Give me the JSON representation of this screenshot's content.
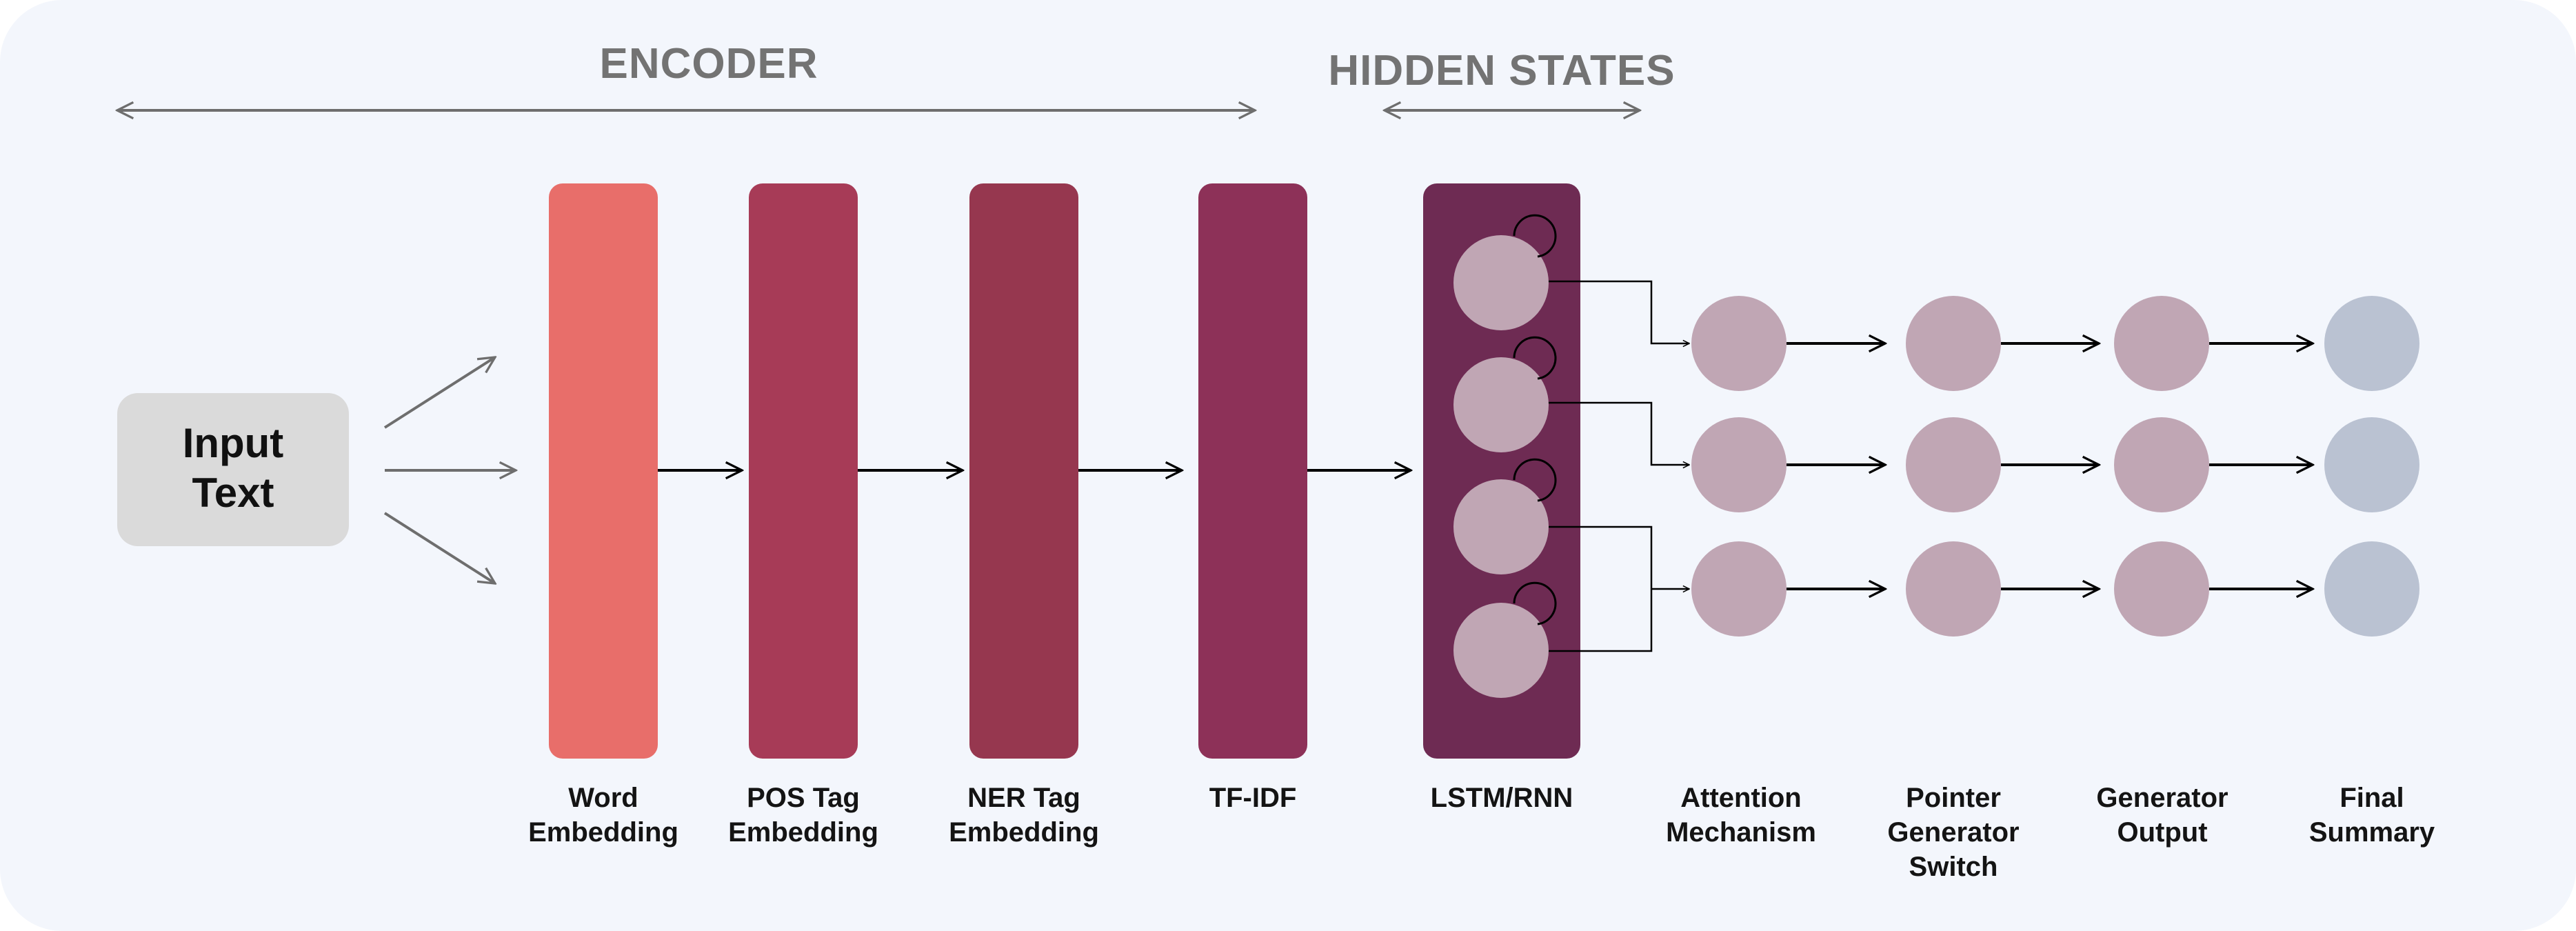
{
  "header": {
    "encoder": "ENCODER",
    "hidden_states": "HIDDEN STATES"
  },
  "input_box": {
    "line1": "Input",
    "line2": "Text"
  },
  "labels": {
    "word_embedding": [
      "Word",
      "Embedding"
    ],
    "pos_tag": [
      "POS Tag",
      "Embedding"
    ],
    "ner_tag": [
      "NER Tag",
      "Embedding"
    ],
    "tfidf": [
      "TF-IDF"
    ],
    "lstm": [
      "LSTM/RNN"
    ],
    "attention": [
      "Attention",
      "Mechanism"
    ],
    "pointer": [
      "Pointer",
      "Generator",
      "Switch"
    ],
    "generator_output": [
      "Generator",
      "Output"
    ],
    "final_summary": [
      "Final",
      "Summary"
    ]
  },
  "colors": {
    "background": "#f3f6fc",
    "input_box": "#dadada",
    "word_embedding": "#e86e6a",
    "pos_tag": "#a73b57",
    "ner_tag": "#96374f",
    "tfidf": "#8d3158",
    "lstm": "#6e2b53",
    "node": "#c0a6b4",
    "final_node": "#bac2d2",
    "arrow": "#000000",
    "header_arrow": "#6e6e6e"
  },
  "icons": [
    "arrow-icon",
    "self-loop-icon"
  ]
}
